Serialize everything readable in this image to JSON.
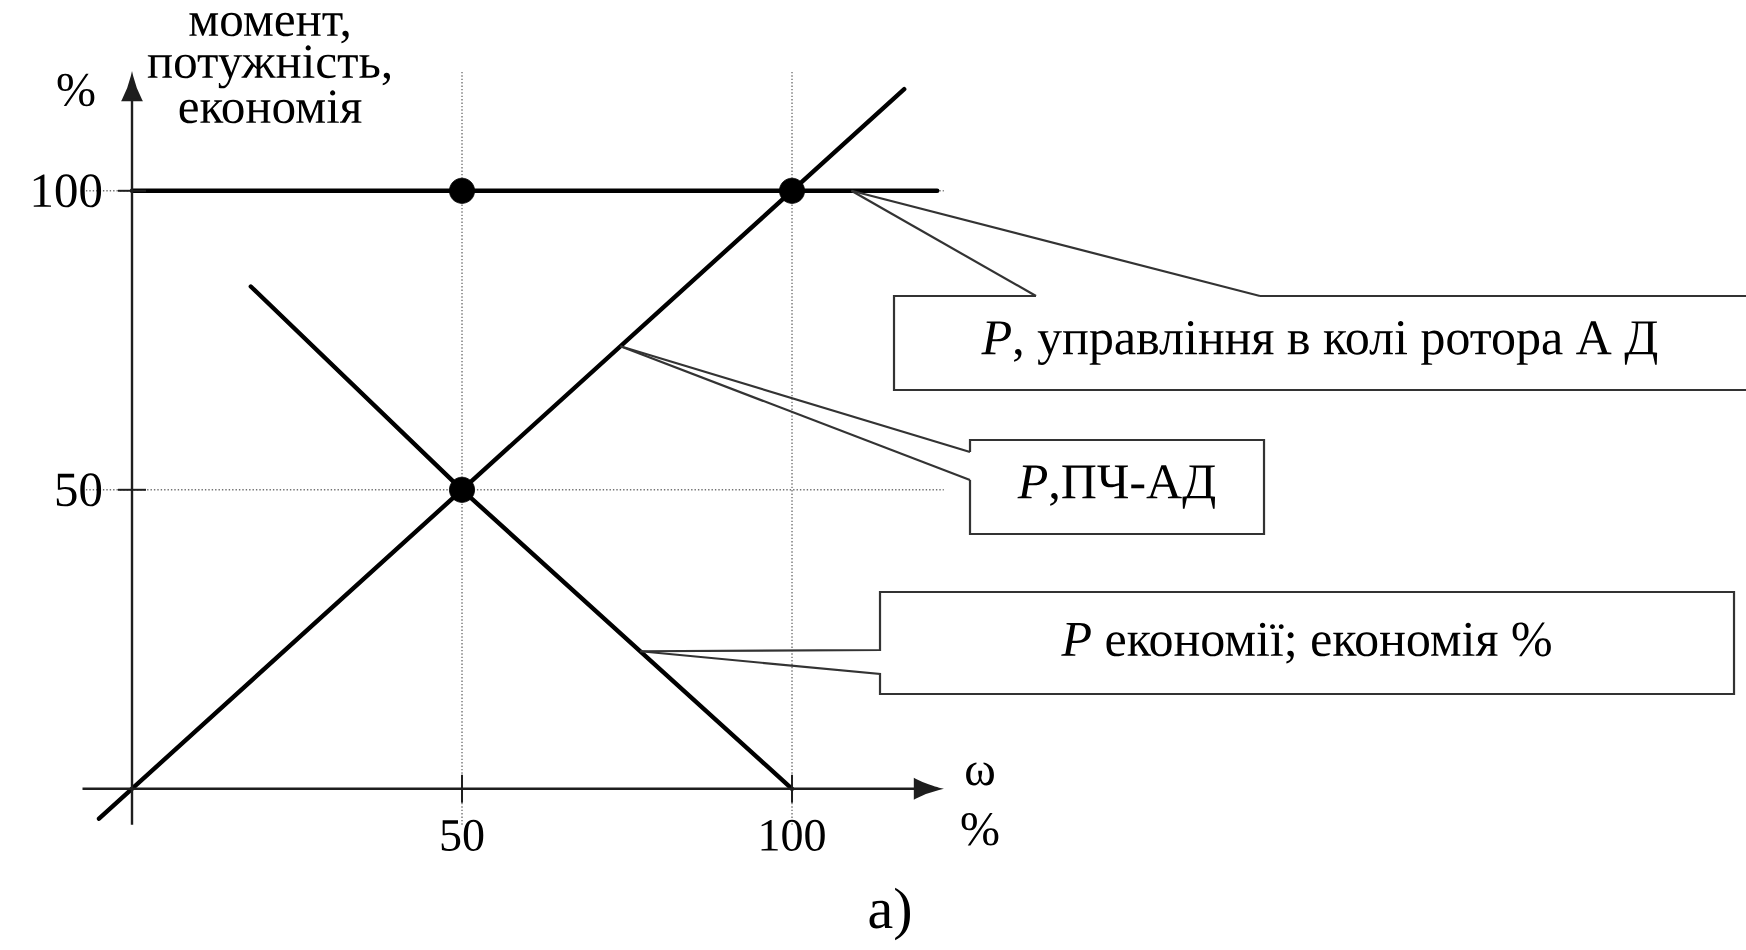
{
  "chart_data": {
    "type": "line",
    "xlabel": "ω %",
    "ylabel": "момент, потужність, економія",
    "xlim": [
      -7.5,
      123
    ],
    "ylim": [
      -6,
      120
    ],
    "xticks": [
      50,
      100
    ],
    "yticks": [
      50,
      100
    ],
    "grid": true,
    "series": [
      {
        "color": "#000000",
        "marker": "none",
        "line_style": "solid",
        "x": [
          0,
          122
        ],
        "values": [
          100,
          100
        ]
      },
      {
        "color": "#000000",
        "marker": "none",
        "line_style": "solid",
        "x": [
          -5,
          117
        ],
        "values": [
          -5,
          117
        ]
      },
      {
        "color": "#000000",
        "marker": "none",
        "line_style": "solid",
        "x": [
          18,
          50,
          100
        ],
        "values": [
          84,
          50,
          0
        ]
      },
      {
        "type": "scatter",
        "color": "#000000",
        "marker": "circle",
        "x": [
          50,
          100,
          50
        ],
        "values": [
          100,
          100,
          50
        ]
      }
    ],
    "annotations": [
      {
        "text": "*P*, управління в колі ротора А Д",
        "x": 109,
        "y": 100
      },
      {
        "text": "*P*,ПЧ-АД",
        "x": 74,
        "y": 74
      },
      {
        "text": "*P* економії; економія %",
        "x": 77,
        "y": 23
      },
      "%",
      "а)"
    ]
  }
}
